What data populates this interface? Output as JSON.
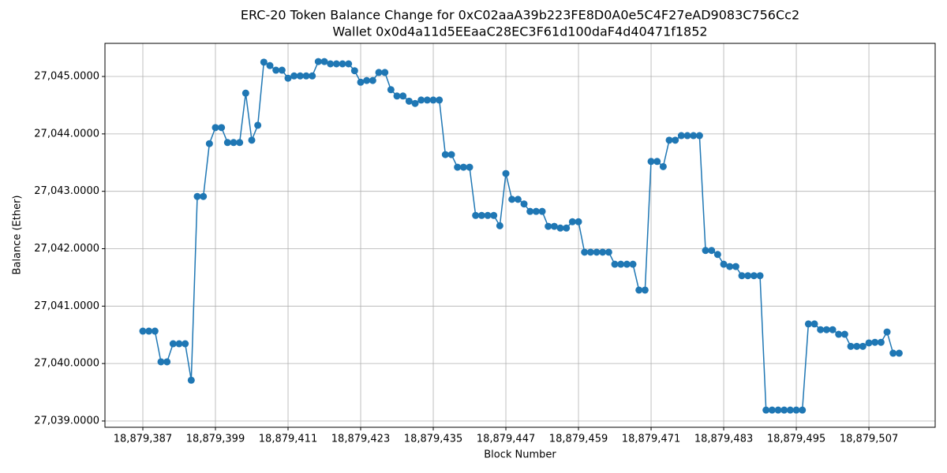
{
  "chart_data": {
    "type": "line",
    "title": "ERC-20 Token Balance Change for 0xC02aaA39b223FE8D0A0e5C4F27eAD9083C756Cc2",
    "subtitle": "Wallet 0x0d4a11d5EEaaC28EC3F61d100daF4d40471f1852",
    "xlabel": "Block Number",
    "ylabel": "Balance (Ether)",
    "grid": true,
    "xlim": [
      18879380.74,
      18879517.95
    ],
    "ylim": [
      27038.89,
      27045.577
    ],
    "xticks": [
      {
        "value": 18879387,
        "label": "18,879,387"
      },
      {
        "value": 18879399,
        "label": "18,879,399"
      },
      {
        "value": 18879411,
        "label": "18,879,411"
      },
      {
        "value": 18879423,
        "label": "18,879,423"
      },
      {
        "value": 18879435,
        "label": "18,879,435"
      },
      {
        "value": 18879447,
        "label": "18,879,447"
      },
      {
        "value": 18879459,
        "label": "18,879,459"
      },
      {
        "value": 18879471,
        "label": "18,879,471"
      },
      {
        "value": 18879483,
        "label": "18,879,483"
      },
      {
        "value": 18879495,
        "label": "18,879,495"
      },
      {
        "value": 18879507,
        "label": "18,879,507"
      }
    ],
    "yticks": [
      {
        "value": 27039,
        "label": "27,039.0000"
      },
      {
        "value": 27040,
        "label": "27,040.0000"
      },
      {
        "value": 27041,
        "label": "27,041.0000"
      },
      {
        "value": 27042,
        "label": "27,042.0000"
      },
      {
        "value": 27043,
        "label": "27,043.0000"
      },
      {
        "value": 27044,
        "label": "27,044.0000"
      },
      {
        "value": 27045,
        "label": "27,045.0000"
      }
    ],
    "x": [
      18879387,
      18879388,
      18879389,
      18879390,
      18879391,
      18879392,
      18879393,
      18879394,
      18879395,
      18879396,
      18879397,
      18879398,
      18879399,
      18879400,
      18879401,
      18879402,
      18879403,
      18879404,
      18879405,
      18879406,
      18879407,
      18879408,
      18879409,
      18879410,
      18879411,
      18879412,
      18879413,
      18879414,
      18879415,
      18879416,
      18879417,
      18879418,
      18879419,
      18879420,
      18879421,
      18879422,
      18879423,
      18879424,
      18879425,
      18879426,
      18879427,
      18879428,
      18879429,
      18879430,
      18879431,
      18879432,
      18879433,
      18879434,
      18879435,
      18879436,
      18879437,
      18879438,
      18879439,
      18879440,
      18879441,
      18879442,
      18879443,
      18879444,
      18879445,
      18879446,
      18879447,
      18879448,
      18879449,
      18879450,
      18879451,
      18879452,
      18879453,
      18879454,
      18879455,
      18879456,
      18879457,
      18879458,
      18879459,
      18879460,
      18879461,
      18879462,
      18879463,
      18879464,
      18879465,
      18879466,
      18879467,
      18879468,
      18879469,
      18879470,
      18879471,
      18879472,
      18879473,
      18879474,
      18879475,
      18879476,
      18879477,
      18879478,
      18879479,
      18879480,
      18879481,
      18879482,
      18879483,
      18879484,
      18879485,
      18879486,
      18879487,
      18879488,
      18879489,
      18879490,
      18879491,
      18879492,
      18879493,
      18879494,
      18879495,
      18879496,
      18879497,
      18879498,
      18879499,
      18879500,
      18879501,
      18879502,
      18879503,
      18879504,
      18879505,
      18879506,
      18879507,
      18879508,
      18879509,
      18879510,
      18879511,
      18879512
    ],
    "series": [
      {
        "name": "Balance",
        "color": "#1f77b4",
        "values": [
          27040.565,
          27040.565,
          27040.565,
          27040.03,
          27040.03,
          27040.345,
          27040.345,
          27040.345,
          27039.71,
          27042.91,
          27042.91,
          27043.83,
          27044.11,
          27044.11,
          27043.85,
          27043.85,
          27043.85,
          27044.71,
          27043.89,
          27044.15,
          27045.25,
          27045.19,
          27045.11,
          27045.11,
          27044.97,
          27045.01,
          27045.01,
          27045.01,
          27045.01,
          27045.26,
          27045.26,
          27045.22,
          27045.22,
          27045.22,
          27045.22,
          27045.1,
          27044.9,
          27044.93,
          27044.93,
          27045.07,
          27045.07,
          27044.77,
          27044.66,
          27044.66,
          27044.57,
          27044.53,
          27044.59,
          27044.59,
          27044.59,
          27044.59,
          27043.64,
          27043.64,
          27043.42,
          27043.42,
          27043.42,
          27042.58,
          27042.58,
          27042.58,
          27042.58,
          27042.4,
          27043.31,
          27042.86,
          27042.86,
          27042.78,
          27042.65,
          27042.65,
          27042.65,
          27042.39,
          27042.39,
          27042.36,
          27042.36,
          27042.47,
          27042.47,
          27041.94,
          27041.94,
          27041.94,
          27041.94,
          27041.94,
          27041.73,
          27041.73,
          27041.73,
          27041.73,
          27041.28,
          27041.28,
          27043.52,
          27043.52,
          27043.43,
          27043.89,
          27043.89,
          27043.97,
          27043.97,
          27043.97,
          27043.97,
          27041.97,
          27041.97,
          27041.9,
          27041.73,
          27041.69,
          27041.69,
          27041.53,
          27041.53,
          27041.53,
          27041.53,
          27039.19,
          27039.19,
          27039.19,
          27039.19,
          27039.19,
          27039.19,
          27039.19,
          27040.69,
          27040.69,
          27040.59,
          27040.59,
          27040.59,
          27040.51,
          27040.51,
          27040.3,
          27040.3,
          27040.3,
          27040.36,
          27040.37,
          27040.37,
          27040.55,
          27040.18,
          27040.18
        ]
      }
    ]
  }
}
